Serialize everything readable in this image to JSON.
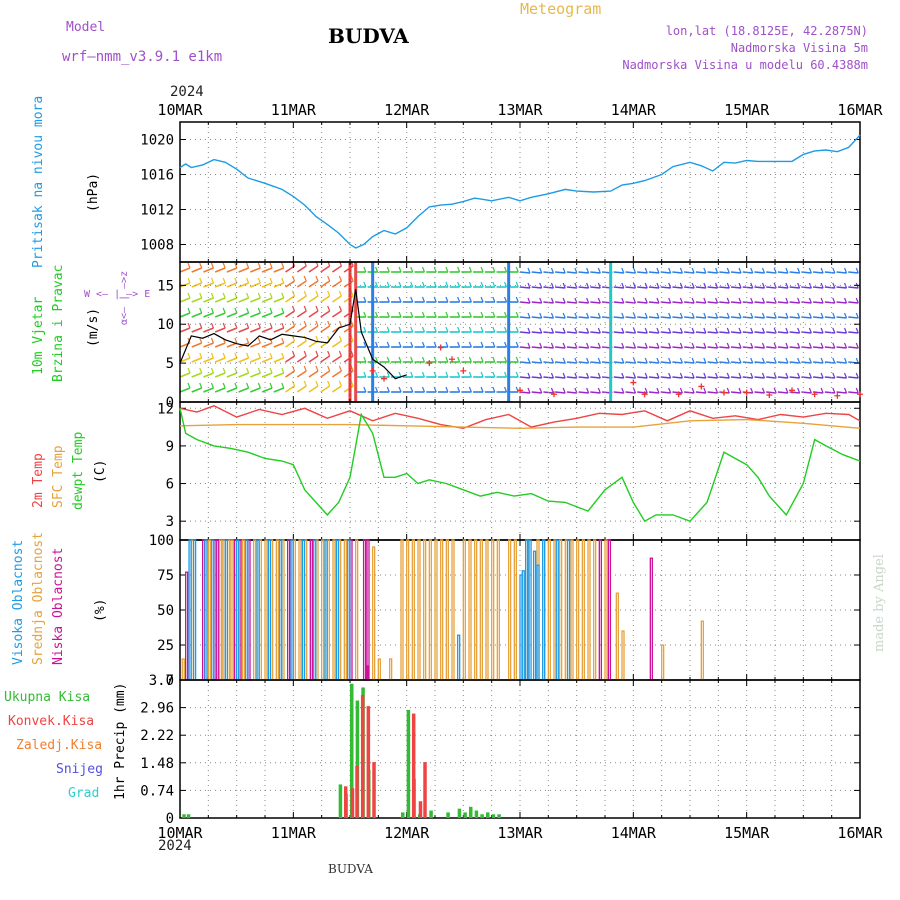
{
  "header": {
    "model_label": "Model",
    "model_name": "wrf—nmm_v3.9.1  e1km",
    "station": "BUDVA",
    "product": "Meteogram",
    "lonlat": "lon,lat (18.8125E, 42.2875N)",
    "elevation": "Nadmorska Visina 5m",
    "model_elevation": "Nadmorska Visina u modelu 60.4388m",
    "footer_station": "BUDVA",
    "watermark": "made by Angel",
    "year": "2024"
  },
  "time_axis": {
    "labels": [
      "10MAR",
      "11MAR",
      "12MAR",
      "13MAR",
      "14MAR",
      "15MAR",
      "16MAR"
    ],
    "days": [
      0,
      1,
      2,
      3,
      4,
      5,
      6
    ]
  },
  "colors": {
    "pressure": "#1e9be6",
    "temp2m": "#ee4444",
    "sfctemp": "#e6a23c",
    "dewpt": "#22cc22",
    "high_cloud": "#1e9be6",
    "mid_cloud": "#e6a23c",
    "low_cloud": "#cc1199",
    "total_precip": "#33bb33",
    "conv_precip": "#ee4444",
    "frozen_precip": "#f08030",
    "snow": "#5050dd",
    "graupel": "#33cccc",
    "wind_line": "#000000",
    "gust_marker": "#ee3333"
  },
  "panel_labels": {
    "pressure": {
      "name": "Pritisak na nivou mora",
      "unit": "(hPa)"
    },
    "wind": {
      "name1": "10m Vjetar",
      "name2": "Brzina i Pravac",
      "unit": "(m/s)",
      "compass_ns": "α<— | —>z",
      "compass_we": "W <— | —> E"
    },
    "temp": {
      "t2m": "2m Temp",
      "sfc": "SFC Temp",
      "dew": "dewpt Temp",
      "unit": "(C)"
    },
    "cloud": {
      "high": "Visoka Oblacnost",
      "mid": "Srednja Oblacnost",
      "low": "Niska Oblacnost",
      "unit": "(%)"
    },
    "precip": {
      "total": "Ukupna Kisa",
      "conv": "Konvek.Kisa",
      "frozen": "Zaledj.Kisa",
      "snow": "Snijeg",
      "graupel": "Grad",
      "unit": "1hr Precip (mm)"
    }
  },
  "chart_data": [
    {
      "type": "line",
      "panel": "pressure",
      "ylabel": "(hPa)",
      "ylim": [
        1006,
        1022
      ],
      "yticks": [
        1008,
        1012,
        1016,
        1020
      ],
      "grid": true,
      "series": [
        {
          "name": "Pritisak na nivou mora",
          "x": [
            0,
            0.05,
            0.1,
            0.2,
            0.3,
            0.4,
            0.5,
            0.6,
            0.75,
            0.9,
            1.0,
            1.1,
            1.2,
            1.3,
            1.4,
            1.5,
            1.55,
            1.62,
            1.7,
            1.8,
            1.9,
            2.0,
            2.1,
            2.2,
            2.3,
            2.4,
            2.5,
            2.6,
            2.75,
            2.9,
            3.0,
            3.1,
            3.25,
            3.4,
            3.5,
            3.65,
            3.8,
            3.9,
            4.0,
            4.1,
            4.25,
            4.35,
            4.5,
            4.6,
            4.7,
            4.8,
            4.9,
            5.0,
            5.1,
            5.25,
            5.4,
            5.5,
            5.6,
            5.7,
            5.8,
            5.9,
            6.0
          ],
          "y": [
            1016.8,
            1017.2,
            1016.8,
            1017.1,
            1017.7,
            1017.4,
            1016.6,
            1015.6,
            1015.0,
            1014.3,
            1013.5,
            1012.5,
            1011.2,
            1010.3,
            1009.3,
            1008.0,
            1007.6,
            1008.0,
            1008.9,
            1009.6,
            1009.2,
            1009.9,
            1011.2,
            1012.3,
            1012.5,
            1012.6,
            1012.9,
            1013.3,
            1013.0,
            1013.4,
            1013.0,
            1013.4,
            1013.8,
            1014.3,
            1014.1,
            1014.0,
            1014.1,
            1014.8,
            1015.0,
            1015.3,
            1016.0,
            1016.9,
            1017.4,
            1017.0,
            1016.4,
            1017.4,
            1017.3,
            1017.6,
            1017.5,
            1017.5,
            1017.5,
            1018.3,
            1018.7,
            1018.8,
            1018.6,
            1019.1,
            1020.5
          ]
        }
      ]
    },
    {
      "type": "line",
      "panel": "wind",
      "ylabel": "(m/s)",
      "ylim": [
        0,
        18
      ],
      "yticks": [
        0,
        5,
        10,
        15
      ],
      "grid": true,
      "series": [
        {
          "name": "wind speed",
          "x": [
            0,
            0.1,
            0.2,
            0.3,
            0.4,
            0.5,
            0.6,
            0.7,
            0.8,
            0.9,
            1.0,
            1.1,
            1.2,
            1.3,
            1.4,
            1.5,
            1.55,
            1.6,
            1.7,
            1.8,
            1.9,
            2.0
          ],
          "y": [
            5.0,
            8.5,
            8.2,
            8.8,
            8.0,
            7.5,
            7.2,
            8.5,
            8.0,
            8.7,
            8.5,
            8.3,
            7.8,
            7.6,
            9.5,
            10.0,
            14.5,
            9.0,
            5.5,
            4.5,
            3.0,
            3.5
          ]
        },
        {
          "name": "gust",
          "x": [
            1.7,
            1.8,
            2.2,
            2.3,
            2.4,
            2.5,
            3.0,
            3.3,
            4.0,
            4.1,
            4.4,
            4.6,
            4.8,
            5.0,
            5.2,
            5.4,
            5.6,
            5.8,
            6.0
          ],
          "y": [
            4.0,
            3.0,
            5.0,
            7.0,
            5.5,
            4.0,
            1.5,
            1.0,
            2.5,
            1.0,
            1.0,
            2.0,
            1.2,
            1.2,
            0.9,
            1.5,
            1.0,
            0.8,
            1.0
          ]
        }
      ]
    },
    {
      "type": "line",
      "panel": "temperature",
      "ylabel": "(C)",
      "ylim": [
        1.5,
        12.5
      ],
      "yticks": [
        3,
        6,
        9,
        12
      ],
      "grid": true,
      "series": [
        {
          "name": "2m Temp",
          "x": [
            0,
            0.15,
            0.3,
            0.5,
            0.7,
            0.9,
            1.1,
            1.3,
            1.5,
            1.7,
            1.9,
            2.1,
            2.3,
            2.5,
            2.7,
            2.9,
            3.1,
            3.3,
            3.5,
            3.7,
            3.9,
            4.1,
            4.3,
            4.5,
            4.7,
            4.9,
            5.1,
            5.3,
            5.5,
            5.7,
            5.9,
            6.0
          ],
          "y": [
            12.0,
            11.7,
            12.2,
            11.3,
            11.9,
            11.5,
            12.0,
            11.2,
            11.8,
            11.0,
            11.6,
            11.2,
            10.7,
            10.4,
            11.1,
            11.5,
            10.5,
            10.9,
            11.2,
            11.6,
            11.5,
            11.8,
            11.0,
            11.8,
            11.2,
            11.4,
            11.1,
            11.5,
            11.3,
            11.6,
            11.5,
            11.0
          ]
        },
        {
          "name": "SFC Temp",
          "x": [
            0,
            0.5,
            1.0,
            1.5,
            2.0,
            2.5,
            3.0,
            3.5,
            4.0,
            4.5,
            5.0,
            5.5,
            6.0
          ],
          "y": [
            10.6,
            10.7,
            10.7,
            10.7,
            10.6,
            10.5,
            10.4,
            10.5,
            10.5,
            11.0,
            11.1,
            10.8,
            10.4
          ]
        },
        {
          "name": "dewpt Temp",
          "x": [
            0,
            0.05,
            0.15,
            0.3,
            0.45,
            0.6,
            0.75,
            0.9,
            1.0,
            1.1,
            1.2,
            1.3,
            1.4,
            1.5,
            1.55,
            1.6,
            1.7,
            1.8,
            1.9,
            2.0,
            2.1,
            2.2,
            2.35,
            2.5,
            2.65,
            2.8,
            2.95,
            3.1,
            3.25,
            3.4,
            3.6,
            3.75,
            3.9,
            4.0,
            4.1,
            4.2,
            4.35,
            4.5,
            4.65,
            4.8,
            4.9,
            5.0,
            5.1,
            5.2,
            5.35,
            5.5,
            5.6,
            5.7,
            5.85,
            6.0
          ],
          "y": [
            12.0,
            10.0,
            9.5,
            9.0,
            8.8,
            8.5,
            8.0,
            7.8,
            7.5,
            5.5,
            4.5,
            3.5,
            4.5,
            6.5,
            9.0,
            11.5,
            10.0,
            6.5,
            6.5,
            6.8,
            6.0,
            6.3,
            6.0,
            5.5,
            5.0,
            5.3,
            5.0,
            5.2,
            4.6,
            4.5,
            3.8,
            5.5,
            6.5,
            4.5,
            3.0,
            3.5,
            3.5,
            3.0,
            4.5,
            8.5,
            8.0,
            7.5,
            6.5,
            5.0,
            3.5,
            6.0,
            9.5,
            9.0,
            8.3,
            7.8
          ]
        }
      ]
    },
    {
      "type": "bar",
      "panel": "cloud",
      "ylabel": "(%)",
      "ylim": [
        0,
        100
      ],
      "yticks": [
        0,
        25,
        50,
        75,
        100
      ],
      "grid": true,
      "series": [
        {
          "name": "Niska Oblacnost",
          "x": [
            0.05,
            0.2,
            0.3,
            0.32,
            0.48,
            0.52,
            0.6,
            0.95,
            1.15,
            1.5,
            1.62,
            1.64,
            1.65,
            3.7,
            3.78,
            4.15
          ],
          "y": [
            77,
            100,
            100,
            100,
            100,
            100,
            100,
            100,
            100,
            100,
            100,
            10,
            100,
            100,
            100,
            87
          ]
        },
        {
          "name": "Srednja Oblacnost",
          "x": [
            0.02,
            0.1,
            0.25,
            0.35,
            0.38,
            0.42,
            0.45,
            0.55,
            0.65,
            0.7,
            0.75,
            0.8,
            0.85,
            0.9,
            1.0,
            1.05,
            1.1,
            1.2,
            1.25,
            1.3,
            1.35,
            1.4,
            1.45,
            1.55,
            1.7,
            1.75,
            1.85,
            1.95,
            2.0,
            2.05,
            2.1,
            2.15,
            2.2,
            2.25,
            2.3,
            2.35,
            2.4,
            2.5,
            2.55,
            2.6,
            2.65,
            2.7,
            2.75,
            2.8,
            2.9,
            2.95,
            3.05,
            3.15,
            3.2,
            3.25,
            3.3,
            3.35,
            3.4,
            3.45,
            3.5,
            3.55,
            3.6,
            3.65,
            3.75,
            3.85,
            3.9,
            4.25,
            4.6
          ],
          "y": [
            15,
            100,
            100,
            100,
            100,
            100,
            100,
            100,
            100,
            100,
            100,
            100,
            100,
            100,
            100,
            100,
            100,
            100,
            100,
            100,
            100,
            100,
            100,
            100,
            95,
            15,
            15,
            100,
            100,
            100,
            100,
            100,
            100,
            100,
            100,
            100,
            100,
            100,
            100,
            100,
            100,
            100,
            100,
            100,
            100,
            100,
            100,
            100,
            100,
            100,
            100,
            100,
            100,
            100,
            100,
            100,
            100,
            100,
            100,
            62,
            35,
            25,
            42
          ]
        },
        {
          "name": "Visoka Oblacnost",
          "x": [
            0.08,
            0.12,
            0.22,
            0.28,
            0.4,
            0.5,
            0.58,
            0.68,
            0.78,
            0.88,
            0.98,
            1.08,
            1.18,
            1.28,
            1.38,
            1.48,
            2.45,
            3.0,
            3.02,
            3.05,
            3.08,
            3.12,
            3.15,
            3.2,
            3.32,
            3.42
          ],
          "y": [
            100,
            100,
            100,
            100,
            100,
            100,
            100,
            100,
            100,
            100,
            100,
            100,
            100,
            100,
            100,
            100,
            32,
            75,
            78,
            100,
            100,
            92,
            82,
            100,
            100,
            100
          ]
        }
      ]
    },
    {
      "type": "bar",
      "panel": "precipitation",
      "ylabel": "1hr Precip (mm)",
      "ylim": [
        0,
        3.7
      ],
      "yticks": [
        0,
        0.74,
        1.48,
        2.22,
        2.96,
        3.7
      ],
      "grid": true,
      "series": [
        {
          "name": "Ukupna Kisa",
          "x": [
            0.02,
            0.06,
            1.4,
            1.45,
            1.5,
            1.55,
            1.6,
            1.65,
            1.95,
            2.0,
            2.05,
            2.1,
            2.2,
            2.35,
            2.45,
            2.5,
            2.55,
            2.6,
            2.65,
            2.7,
            2.75,
            2.8
          ],
          "y": [
            0.1,
            0.1,
            0.9,
            0.65,
            3.6,
            3.15,
            3.5,
            1.3,
            0.15,
            2.9,
            1.05,
            0.1,
            0.2,
            0.15,
            0.25,
            0.15,
            0.3,
            0.2,
            0.1,
            0.15,
            0.1,
            0.1
          ]
        },
        {
          "name": "Konvek.Kisa",
          "x": [
            1.42,
            1.48,
            1.52,
            1.57,
            1.62,
            1.67,
            2.02,
            2.08,
            2.12
          ],
          "y": [
            0.85,
            0.8,
            1.4,
            3.3,
            3.0,
            1.5,
            2.8,
            0.45,
            1.5
          ]
        }
      ]
    }
  ]
}
